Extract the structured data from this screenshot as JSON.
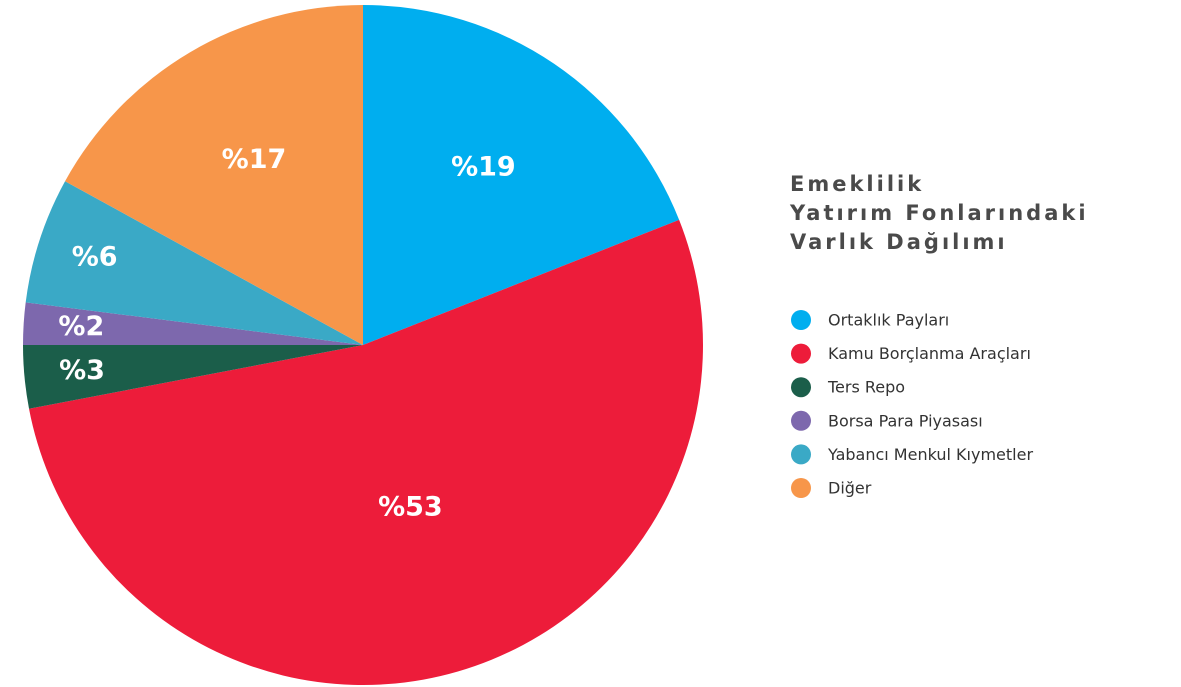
{
  "chart_data": {
    "type": "pie",
    "title": [
      "Emeklilik",
      "Yatırım  Fonlarındaki",
      "Varlık Dağılımı"
    ],
    "categories": [
      "Ortaklık Payları",
      "Kamu Borçlanma Araçları",
      "Ters Repo",
      "Borsa Para Piyasası",
      "Yabancı Menkul Kıymetler",
      "Diğer"
    ],
    "values": [
      19,
      53,
      3,
      2,
      6,
      17
    ],
    "value_labels": [
      "%19",
      "%53",
      "%3",
      "%2",
      "%6",
      "%17"
    ],
    "colors": [
      "#00aeef",
      "#ed1c3a",
      "#1b5e4a",
      "#7d68ad",
      "#3aa9c6",
      "#f7964a"
    ]
  }
}
